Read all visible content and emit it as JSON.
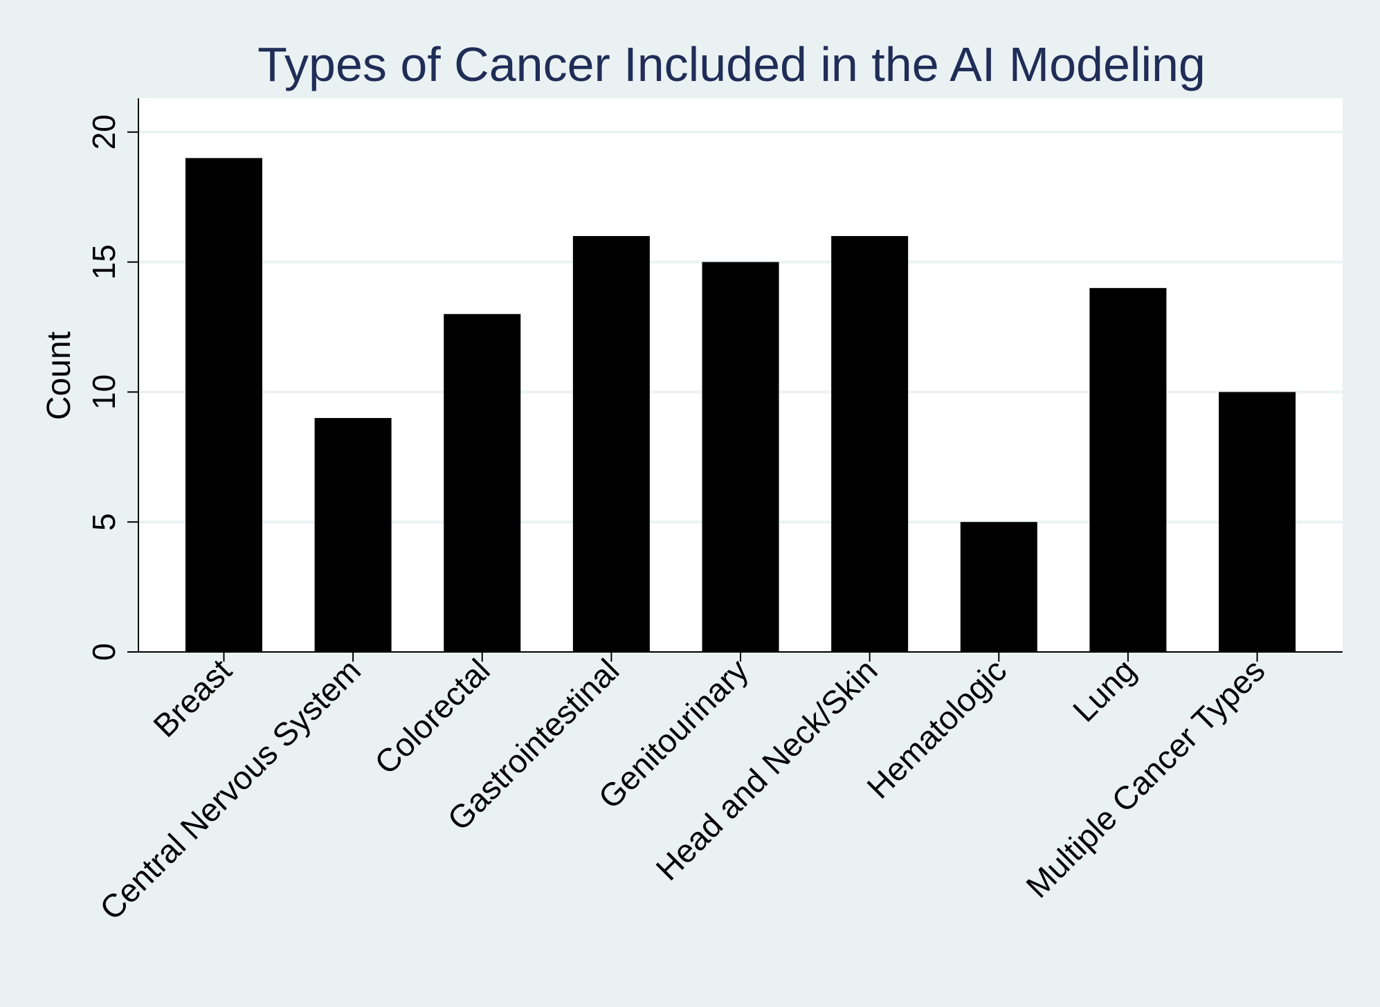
{
  "chart_data": {
    "type": "bar",
    "title": "Types of Cancer Included in the AI Modeling",
    "xlabel": "",
    "ylabel": "Count",
    "categories": [
      "Breast",
      "Central Nervous System",
      "Colorectal",
      "Gastrointestinal",
      "Genitourinary",
      "Head and Neck/Skin",
      "Hematologic",
      "Lung",
      "Multiple Cancer Types"
    ],
    "values": [
      19,
      9,
      13,
      16,
      15,
      16,
      5,
      14,
      10
    ],
    "ylim": [
      0,
      21.3
    ],
    "yticks": [
      0,
      5,
      10,
      15,
      20
    ],
    "grid": true,
    "legend": "none",
    "colors": {
      "background": "#eaf1f3",
      "plot_background": "#ffffff",
      "gridline": "#eaf2f3",
      "bar": "#000000",
      "title": "#1f2d57",
      "axis": "#000000"
    }
  }
}
